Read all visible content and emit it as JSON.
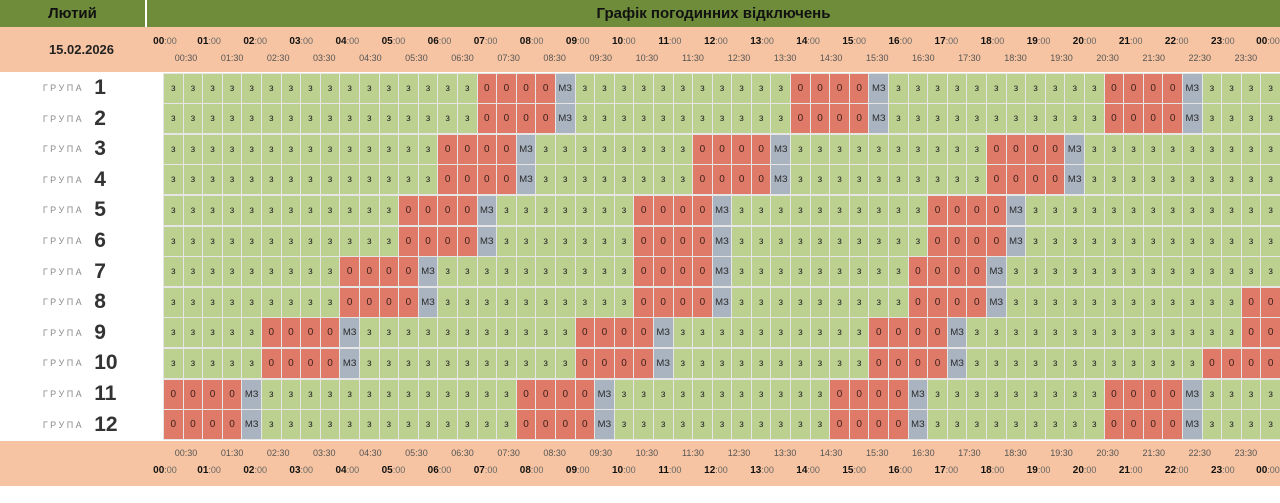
{
  "header": {
    "month": "Лютий",
    "title": "Графік погодинних відключень"
  },
  "date": "15.02.2026",
  "group_word": "ГРУПА",
  "status_labels": {
    "on": "з",
    "off": "0",
    "maybe": "МЗ"
  },
  "colors": {
    "on": "#bcd08f",
    "off": "#e07a68",
    "maybe": "#aab4c0",
    "header": "#6f8c3a",
    "axis": "#f6c4a2"
  },
  "chart_data": {
    "type": "heatmap",
    "title": "Графік погодинних відключень",
    "hour_ticks": [
      "00:00",
      "01:00",
      "02:00",
      "03:00",
      "04:00",
      "05:00",
      "06:00",
      "07:00",
      "08:00",
      "09:00",
      "10:00",
      "11:00",
      "12:00",
      "13:00",
      "14:00",
      "15:00",
      "16:00",
      "17:00",
      "18:00",
      "19:00",
      "20:00",
      "21:00",
      "22:00",
      "23:00",
      "00:00"
    ],
    "half_ticks": [
      "00:30",
      "01:30",
      "02:30",
      "03:30",
      "04:30",
      "05:30",
      "06:30",
      "07:30",
      "08:30",
      "09:30",
      "10:30",
      "11:30",
      "12:30",
      "13:30",
      "14:30",
      "15:30",
      "16:30",
      "17:30",
      "18:30",
      "19:30",
      "20:30",
      "21:30",
      "22:30",
      "23:30"
    ],
    "groups": [
      {
        "number": "1",
        "slots": "333333333333333300004333333333330000433333333333000043333"
      },
      {
        "number": "2",
        "slots": "333333333333333300004333333333330000433333333333000043333"
      },
      {
        "number": "3",
        "slots": "333333333333330000433333333000043333333333000043333333333"
      },
      {
        "number": "4",
        "slots": "333333333333330000433333333000043333333333000043333333333"
      },
      {
        "number": "5",
        "slots": "333333333333000043333333000043333333333000043333333333333"
      },
      {
        "number": "6",
        "slots": "333333333333000043333333000043333333333000043333333333333"
      },
      {
        "number": "7",
        "slots": "333333333000043333333333000043333333330000433333333333333"
      },
      {
        "number": "8",
        "slots": "333333333000043333333333000043333333330000433333333333300"
      },
      {
        "number": "9",
        "slots": "333330000433333333333000043333333333000043333333333333300"
      },
      {
        "number": "10",
        "slots": "333330000433333333333000043333333333000043333333333330000"
      },
      {
        "number": "11",
        "slots": "000043333333333333000043333333333300004333333333000043333"
      },
      {
        "number": "12",
        "slots": "000043333333333333000043333333333300004333333333000043333"
      }
    ]
  }
}
